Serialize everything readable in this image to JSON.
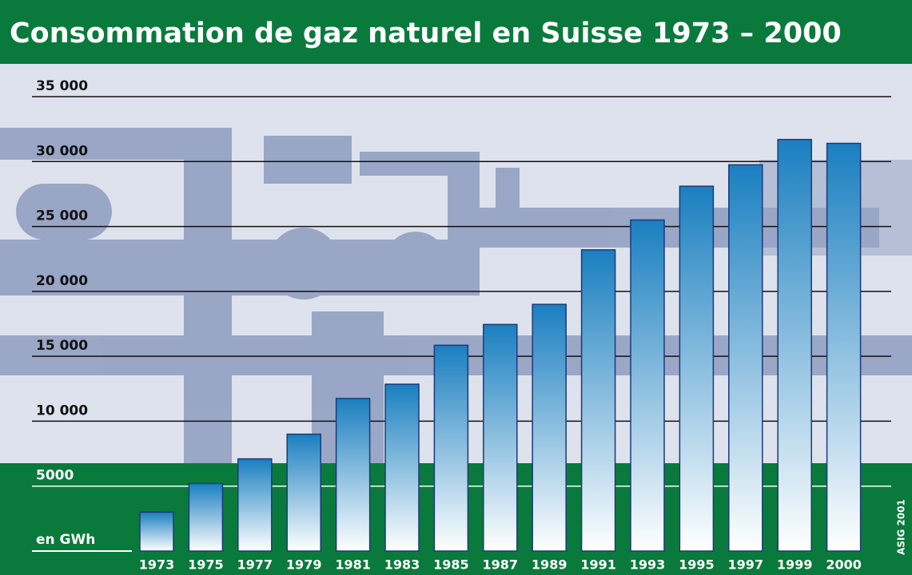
{
  "chart_data": {
    "type": "bar",
    "title": "Consommation de gaz naturel en Suisse 1973 – 2000",
    "y_label": "en GWh",
    "annotation": "ASIG 2001",
    "categories": [
      "1973",
      "1975",
      "1977",
      "1979",
      "1981",
      "1983",
      "1985",
      "1987",
      "1989",
      "1991",
      "1993",
      "1995",
      "1997",
      "1999",
      "2000"
    ],
    "values": [
      3000,
      5200,
      7100,
      9000,
      11750,
      12850,
      15850,
      17450,
      19000,
      23200,
      25500,
      28100,
      29750,
      31700,
      31400
    ],
    "color": "#1a7fc0",
    "ylim": [
      0,
      35000
    ],
    "yticks": [
      5000,
      {
        "value": 10000,
        "label": "10 000"
      },
      {
        "value": 15000,
        "label": "15 000"
      },
      {
        "value": 20000,
        "label": "20 000"
      },
      {
        "value": 25000,
        "label": "25 000"
      },
      {
        "value": 30000,
        "label": "30 000"
      },
      {
        "value": 35000,
        "label": "35 000"
      }
    ],
    "grid": true
  }
}
